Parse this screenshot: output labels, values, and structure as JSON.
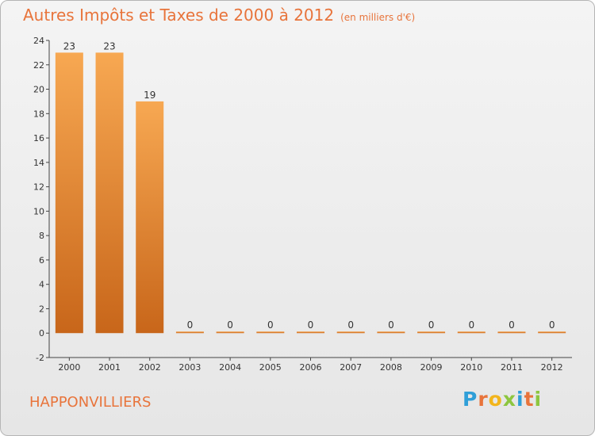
{
  "title": "Autres Impôts et Taxes de 2000 à 2012",
  "unit": "(en milliers d'€)",
  "commune": "HAPPONVILLIERS",
  "logo": {
    "letters": [
      "P",
      "r",
      "o",
      "x",
      "i",
      "t",
      "i"
    ],
    "colors": [
      "#2f9fd8",
      "#e8743b",
      "#f2b51c",
      "#8dc63f",
      "#2f9fd8",
      "#e8743b",
      "#8dc63f"
    ]
  },
  "colors": {
    "bar_top": "#f7a852",
    "bar_bottom": "#c8661a",
    "title": "#e8743b"
  },
  "chart_data": {
    "type": "bar",
    "title": "Autres Impôts et Taxes de 2000 à 2012",
    "subtitle": "(en milliers d'€)",
    "xlabel": "",
    "ylabel": "",
    "categories": [
      "2000",
      "2001",
      "2002",
      "2003",
      "2004",
      "2005",
      "2006",
      "2007",
      "2008",
      "2009",
      "2010",
      "2011",
      "2012"
    ],
    "values": [
      23,
      23,
      19,
      0,
      0,
      0,
      0,
      0,
      0,
      0,
      0,
      0,
      0
    ],
    "ylim": [
      -2,
      24
    ],
    "yticks": [
      -2,
      0,
      2,
      4,
      6,
      8,
      10,
      12,
      14,
      16,
      18,
      20,
      22,
      24
    ],
    "grid": false,
    "legend": "none"
  }
}
